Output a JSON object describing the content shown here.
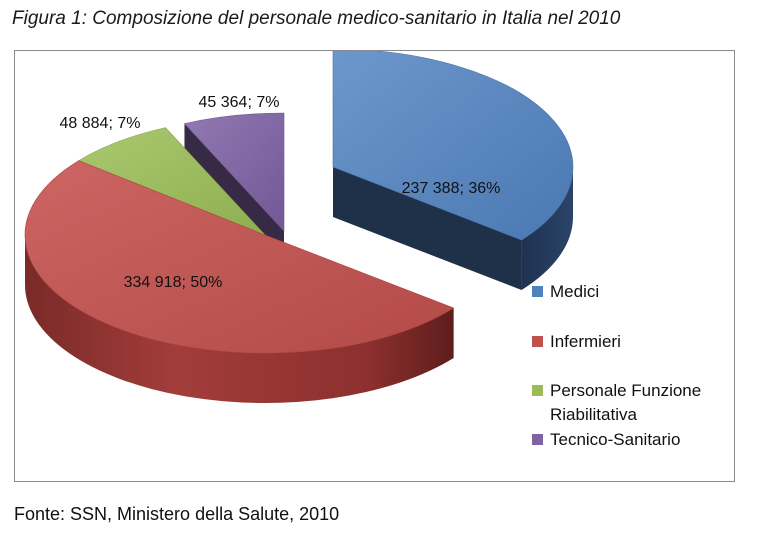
{
  "figure_title": "Figura 1: Composizione del personale medico-sanitario in Italia nel 2010",
  "source_note": "Fonte: SSN, Ministero della Salute, 2010",
  "colors": {
    "medici": "#4f81bd",
    "infermieri": "#c0504d",
    "riabilitativa": "#9bbb59",
    "tecnico": "#8064a2"
  },
  "chart_data": {
    "type": "pie",
    "style": "3d-exploded",
    "legend_position": "right",
    "series": [
      {
        "name": "Medici",
        "value": 237388,
        "percent": 36,
        "label": "237 388; 36%"
      },
      {
        "name": "Infermieri",
        "value": 334918,
        "percent": 50,
        "label": "334 918; 50%"
      },
      {
        "name": "Personale Funzione Riabilitativa",
        "value": 48884,
        "percent": 7,
        "label": "48 884; 7%"
      },
      {
        "name": "Tecnico-Sanitario",
        "value": 45364,
        "percent": 7,
        "label": "45 364; 7%"
      }
    ],
    "legend": [
      {
        "lines": [
          "Medici"
        ]
      },
      {
        "lines": [
          "Infermieri"
        ]
      },
      {
        "lines": [
          "Personale Funzione",
          "Riabilitativa"
        ]
      },
      {
        "lines": [
          "Tecnico-Sanitario"
        ]
      }
    ]
  }
}
